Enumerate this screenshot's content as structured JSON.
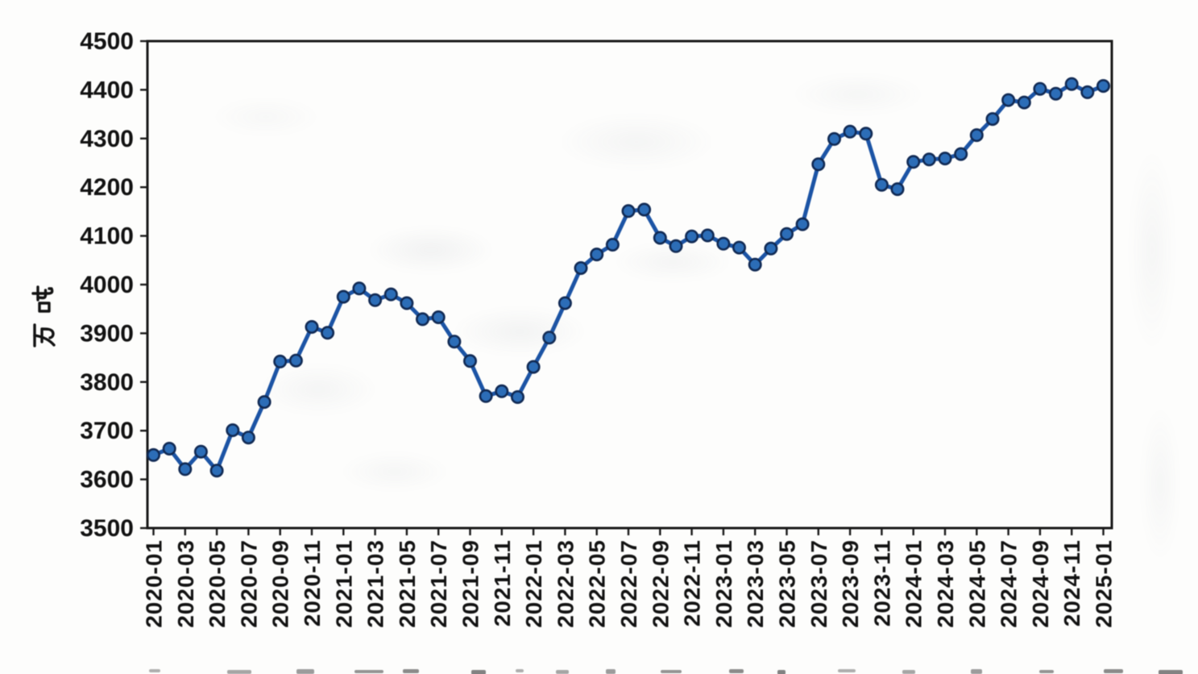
{
  "chart_data": {
    "type": "line",
    "title": "",
    "xlabel": "",
    "ylabel": "万吨",
    "ylim": [
      3500,
      4500
    ],
    "ytick_step": 100,
    "yticks": [
      3500,
      3600,
      3700,
      3800,
      3900,
      4000,
      4100,
      4200,
      4300,
      4400,
      4500
    ],
    "grid": false,
    "legend": false,
    "marker": "circle",
    "line_color": "#1e55a4",
    "marker_color": "#2e6db6",
    "marker_edge_color": "#132c55",
    "axis_color": "#1b1b1b",
    "text_color": "#141414",
    "xtick_labels": [
      "2020-01",
      "2020-03",
      "2020-05",
      "2020-07",
      "2020-09",
      "2020-11",
      "2021-01",
      "2021-03",
      "2021-05",
      "2021-07",
      "2021-09",
      "2021-11",
      "2022-01",
      "2022-03",
      "2022-05",
      "2022-07",
      "2022-09",
      "2022-11",
      "2023-01",
      "2023-03",
      "2023-05",
      "2023-07",
      "2023-09",
      "2023-11",
      "2024-01",
      "2024-03",
      "2024-05",
      "2024-07",
      "2024-09",
      "2024-11",
      "2025-01"
    ],
    "x": [
      "2020-01",
      "2020-02",
      "2020-03",
      "2020-04",
      "2020-05",
      "2020-06",
      "2020-07",
      "2020-08",
      "2020-09",
      "2020-10",
      "2020-11",
      "2020-12",
      "2021-01",
      "2021-02",
      "2021-03",
      "2021-04",
      "2021-05",
      "2021-06",
      "2021-07",
      "2021-08",
      "2021-09",
      "2021-10",
      "2021-11",
      "2021-12",
      "2022-01",
      "2022-02",
      "2022-03",
      "2022-04",
      "2022-05",
      "2022-06",
      "2022-07",
      "2022-08",
      "2022-09",
      "2022-10",
      "2022-11",
      "2022-12",
      "2023-01",
      "2023-02",
      "2023-03",
      "2023-04",
      "2023-05",
      "2023-06",
      "2023-07",
      "2023-08",
      "2023-09",
      "2023-10",
      "2023-11",
      "2023-12",
      "2024-01",
      "2024-02",
      "2024-03",
      "2024-04",
      "2024-05",
      "2024-06",
      "2024-07",
      "2024-08",
      "2024-09",
      "2024-10",
      "2024-11",
      "2024-12",
      "2025-01"
    ],
    "values": [
      3650,
      3663,
      3621,
      3657,
      3618,
      3701,
      3686,
      3759,
      3842,
      3844,
      3913,
      3901,
      3975,
      3992,
      3968,
      3980,
      3962,
      3929,
      3933,
      3883,
      3843,
      3771,
      3781,
      3769,
      3831,
      3891,
      3962,
      4034,
      4062,
      4082,
      4151,
      4154,
      4096,
      4079,
      4099,
      4101,
      4084,
      4076,
      4041,
      4074,
      4104,
      4124,
      4247,
      4299,
      4314,
      4310,
      4205,
      4196,
      4252,
      4257,
      4259,
      4268,
      4307,
      4340,
      4379,
      4374,
      4402,
      4392,
      4412,
      4395,
      4408
    ]
  }
}
